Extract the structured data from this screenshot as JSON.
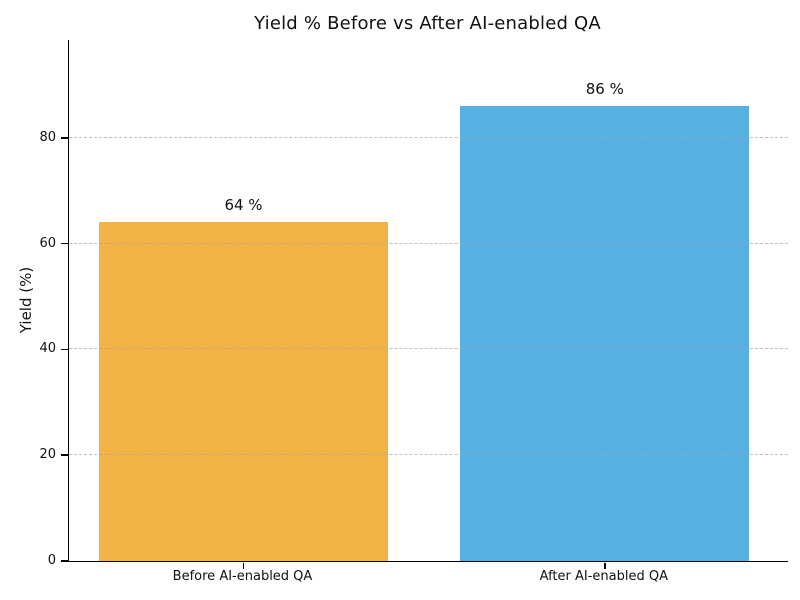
{
  "chart_data": {
    "type": "bar",
    "title": "Yield % Before vs After AI-enabled QA",
    "categories": [
      "Before AI-enabled QA",
      "After AI-enabled QA"
    ],
    "values": [
      64,
      86
    ],
    "bar_labels": [
      "64 %",
      "86 %"
    ],
    "bar_colors": [
      "#F2B344",
      "#56B1E2"
    ],
    "xlabel": "",
    "ylabel": "Yield (%)",
    "yticks": [
      0,
      20,
      40,
      60,
      80
    ],
    "ylim": [
      0,
      98.5
    ],
    "grid": {
      "axis": "y",
      "style": "dashed",
      "color": "#c8c8c8",
      "drawn_over_bars": true,
      "at_ticks": [
        20,
        40,
        60,
        80
      ]
    },
    "legend_position": "none",
    "axis_color": "#000000",
    "text_color": "#111111"
  }
}
